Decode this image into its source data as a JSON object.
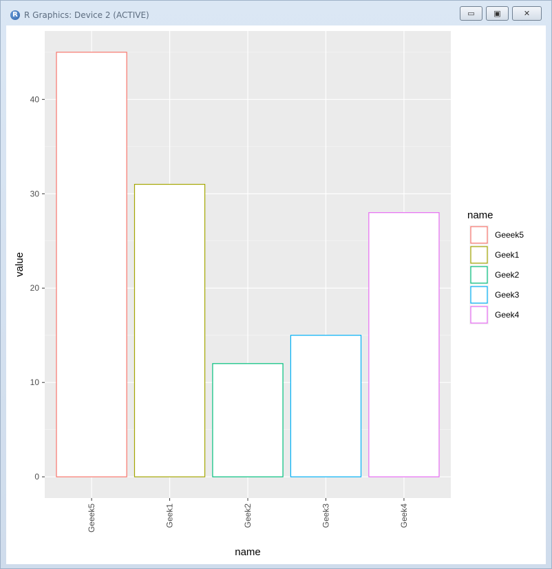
{
  "window": {
    "title": "R Graphics: Device 2 (ACTIVE)",
    "app_icon": "R",
    "buttons": {
      "minimize": "▭",
      "maximize": "▣",
      "close": "✕"
    }
  },
  "chart_data": {
    "type": "bar",
    "categories": [
      "Geeek5",
      "Geek1",
      "Geek2",
      "Geek3",
      "Geek4"
    ],
    "values": [
      45,
      31,
      12,
      15,
      28
    ],
    "colors": [
      "#F8766D",
      "#A3A500",
      "#00BF7D",
      "#00B0F6",
      "#E76BF3"
    ],
    "xlabel": "name",
    "ylabel": "value",
    "ylim": [
      -2.25,
      47.25
    ],
    "yticks": [
      0,
      10,
      20,
      30,
      40
    ],
    "grid": true,
    "legend": {
      "title": "name",
      "placement": "right",
      "entries": [
        "Geeek5",
        "Geek1",
        "Geek2",
        "Geek3",
        "Geek4"
      ]
    }
  }
}
